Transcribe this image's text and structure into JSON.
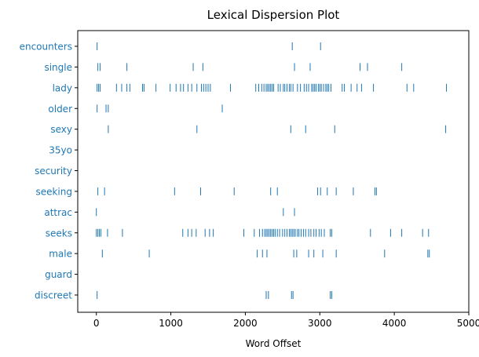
{
  "chart_data": {
    "type": "scatter",
    "title": "Lexical Dispersion Plot",
    "xlabel": "Word Offset",
    "ylabel": "",
    "xlim": [
      -250,
      5000
    ],
    "xticks": [
      0,
      1000,
      2000,
      3000,
      4000,
      5000
    ],
    "grid": false,
    "marker": "|",
    "color": "#1f77b4",
    "label_color": "#1f77b4",
    "words": [
      {
        "word": "encounters",
        "offsets": [
          10,
          2630,
          3010
        ]
      },
      {
        "word": "single",
        "offsets": [
          20,
          50,
          410,
          1300,
          1430,
          2660,
          2870,
          3540,
          3640,
          4100
        ]
      },
      {
        "word": "lady",
        "offsets": [
          10,
          30,
          50,
          270,
          340,
          410,
          450,
          620,
          640,
          800,
          990,
          1070,
          1130,
          1170,
          1230,
          1280,
          1350,
          1410,
          1440,
          1470,
          1500,
          1530,
          1800,
          2140,
          2180,
          2220,
          2250,
          2280,
          2300,
          2320,
          2340,
          2360,
          2380,
          2440,
          2470,
          2510,
          2530,
          2560,
          2590,
          2610,
          2640,
          2700,
          2740,
          2790,
          2820,
          2850,
          2890,
          2910,
          2930,
          2950,
          2980,
          3000,
          3020,
          3050,
          3080,
          3100,
          3120,
          3150,
          3300,
          3330,
          3420,
          3500,
          3560,
          3720,
          4170,
          4260,
          4700
        ]
      },
      {
        "word": "older",
        "offsets": [
          10,
          130,
          160,
          1690
        ]
      },
      {
        "word": "sexy",
        "offsets": [
          160,
          1350,
          2610,
          2810,
          3200,
          4690
        ]
      },
      {
        "word": "35yo",
        "offsets": []
      },
      {
        "word": "security",
        "offsets": []
      },
      {
        "word": "seeking",
        "offsets": [
          20,
          110,
          1050,
          1400,
          1850,
          2340,
          2430,
          2970,
          3010,
          3100,
          3220,
          3450,
          3740,
          3760
        ]
      },
      {
        "word": "attrac",
        "offsets": [
          0,
          2510,
          2660
        ]
      },
      {
        "word": "seeks",
        "offsets": [
          0,
          20,
          40,
          60,
          150,
          350,
          1160,
          1230,
          1280,
          1340,
          1460,
          1520,
          1570,
          1980,
          2120,
          2190,
          2230,
          2260,
          2280,
          2300,
          2320,
          2340,
          2360,
          2380,
          2400,
          2430,
          2460,
          2500,
          2530,
          2560,
          2590,
          2610,
          2630,
          2650,
          2670,
          2700,
          2720,
          2750,
          2780,
          2810,
          2850,
          2880,
          2920,
          2950,
          2990,
          3020,
          3060,
          3140,
          3160,
          3680,
          3950,
          4100,
          4380,
          4460
        ]
      },
      {
        "word": "male",
        "offsets": [
          80,
          710,
          2160,
          2230,
          2290,
          2650,
          2690,
          2850,
          2920,
          3040,
          3220,
          3870,
          4450,
          4470
        ]
      },
      {
        "word": "guard",
        "offsets": []
      },
      {
        "word": "discreet",
        "offsets": [
          10,
          2280,
          2310,
          2620,
          2640,
          3140,
          3160
        ]
      }
    ]
  }
}
